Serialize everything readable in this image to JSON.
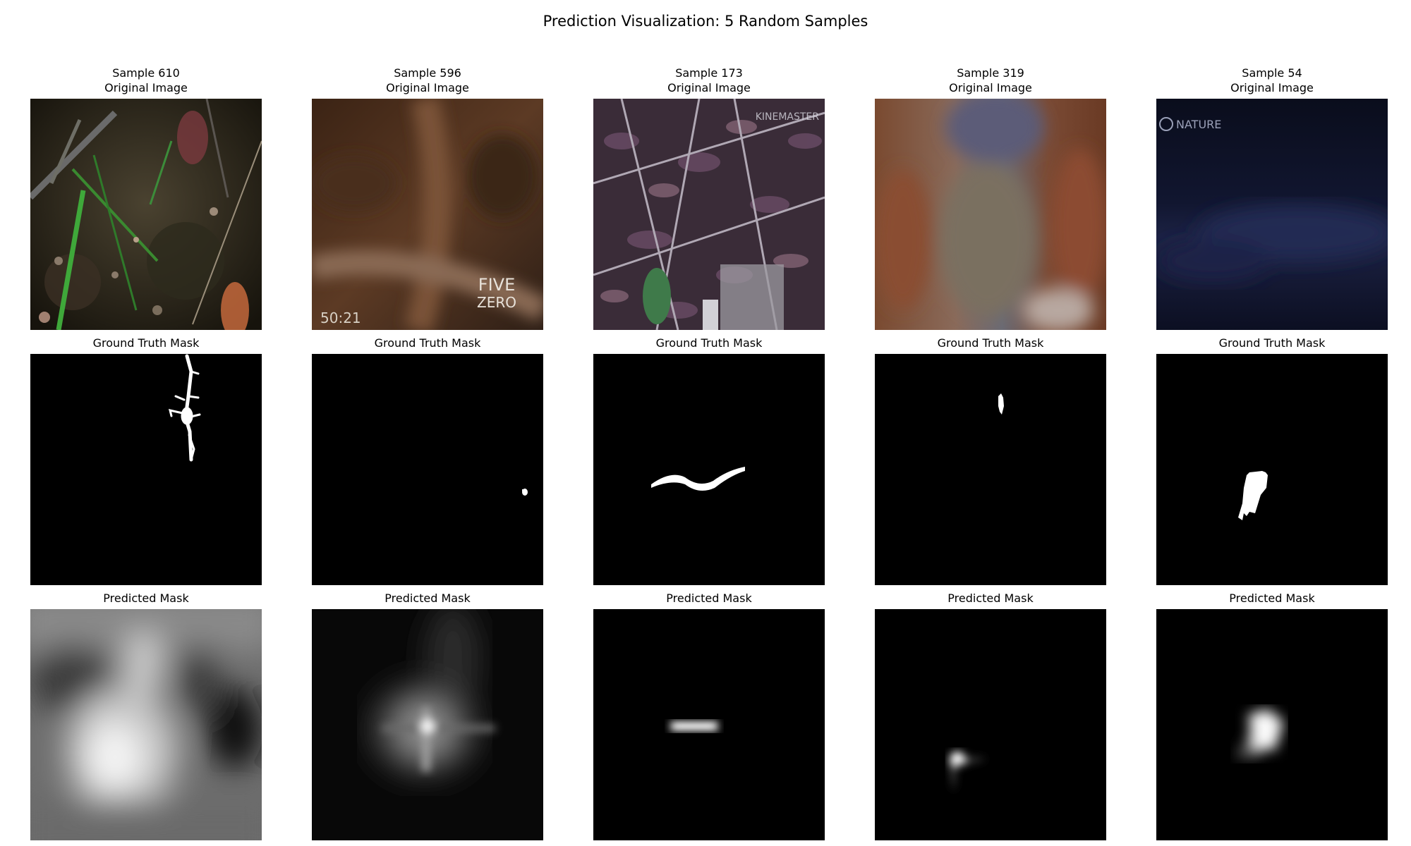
{
  "figure": {
    "title": "Prediction Visualization: 5 Random Samples"
  },
  "row_titles": {
    "original": "Original Image",
    "ground_truth": "Ground Truth Mask",
    "predicted": "Predicted Mask"
  },
  "samples": [
    {
      "label": "Sample 610",
      "overlay_text": []
    },
    {
      "label": "Sample 596",
      "overlay_text": [
        "FIVE",
        "ZERO",
        "50:21"
      ]
    },
    {
      "label": "Sample 173",
      "overlay_text": [
        "KINEMASTER"
      ]
    },
    {
      "label": "Sample 319",
      "overlay_text": []
    },
    {
      "label": "Sample 54",
      "overlay_text": [
        "NATURE"
      ]
    }
  ],
  "colors": {
    "background": "#ffffff",
    "mask_background": "#000000",
    "mask_foreground": "#ffffff"
  }
}
